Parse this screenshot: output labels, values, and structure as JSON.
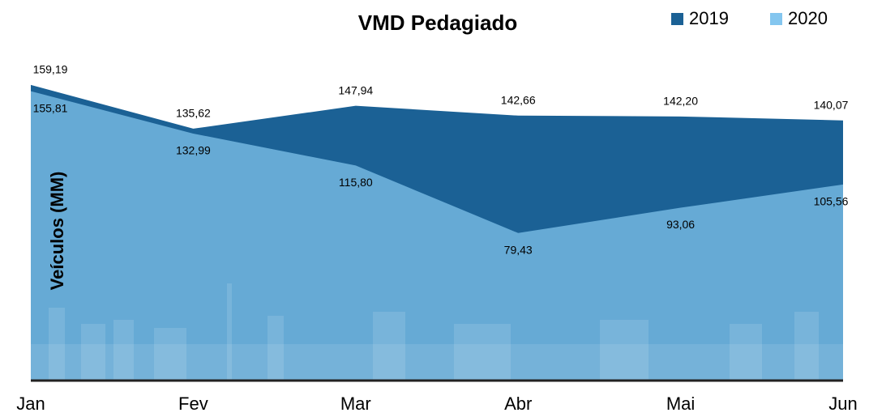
{
  "chart_data": {
    "type": "area",
    "title": "VMD Pedagiado",
    "y_label": "Veículos (MM)",
    "categories": [
      "Jan",
      "Fev",
      "Mar",
      "Abr",
      "Mai",
      "Jun"
    ],
    "series": [
      {
        "name": "2019",
        "color": "#1b6195",
        "values": [
          159.19,
          135.62,
          147.94,
          142.66,
          142.2,
          140.07
        ],
        "value_labels": [
          "159,19",
          "135,62",
          "147,94",
          "142,66",
          "142,20",
          "140,07"
        ]
      },
      {
        "name": "2020",
        "color": "#84c6ef",
        "values": [
          155.81,
          132.99,
          115.8,
          79.43,
          93.06,
          105.56
        ],
        "value_labels": [
          "155,81",
          "132,99",
          "115,80",
          "79,43",
          "93,06",
          "105,56"
        ]
      }
    ],
    "ylim": [
      0,
      160
    ],
    "legend": "top-right"
  }
}
